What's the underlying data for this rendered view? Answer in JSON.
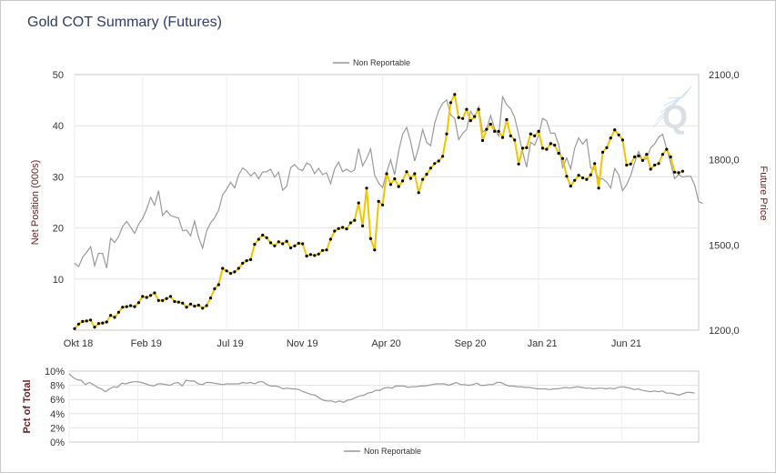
{
  "title": "Gold COT Summary (Futures)",
  "chart_data": [
    {
      "type": "line",
      "legend": {
        "label": "Non Reportable",
        "placement": "top-center"
      },
      "ylabel": "Net Position (000s)",
      "y2label": "Future Price",
      "ylim": [
        0,
        50
      ],
      "y2lim": [
        1200,
        2100
      ],
      "yticks": [
        "10",
        "20",
        "30",
        "40",
        "50"
      ],
      "y2ticks": [
        "1200,0",
        "1500,0",
        "1800,0",
        "2100,0"
      ],
      "y2tick_values": [
        1200,
        1500,
        1800,
        2100
      ],
      "xticks": [
        {
          "label": "Okt 18",
          "x": 0
        },
        {
          "label": "Feb 19",
          "x": 17
        },
        {
          "label": "Jul 19",
          "x": 38
        },
        {
          "label": "Nov 19",
          "x": 56
        },
        {
          "label": "Apr 20",
          "x": 77
        },
        {
          "label": "Sep 20",
          "x": 98
        },
        {
          "label": "Jan 21",
          "x": 116
        },
        {
          "label": "Jun 21",
          "x": 137
        }
      ],
      "x_range": [
        0,
        156
      ],
      "grid": true,
      "series": [
        {
          "name": "Non Reportable",
          "axis": "left",
          "color": "#f2c500",
          "marker_color": "#000000",
          "values": [
            0.3,
            1.2,
            1.7,
            1.8,
            2,
            0.6,
            1.3,
            1.4,
            1.6,
            2.9,
            2.5,
            3.5,
            4.5,
            4.6,
            4.8,
            4.6,
            5.4,
            6.6,
            6.4,
            6.8,
            7.3,
            5.8,
            5.8,
            6.2,
            6.6,
            5.6,
            5.5,
            5.3,
            4.5,
            5.1,
            4.7,
            4.9,
            4.3,
            4.8,
            6.3,
            8.1,
            8.9,
            12.1,
            11.6,
            11.1,
            11.4,
            12.1,
            13.1,
            13.6,
            13.8,
            16.8,
            17.8,
            18.6,
            18.1,
            17.1,
            16.5,
            17.3,
            16.9,
            17.4,
            16.1,
            16.5,
            17,
            16.9,
            14.5,
            14.8,
            14.6,
            14.9,
            15.6,
            15.7,
            17.8,
            19.4,
            19.9,
            20.1,
            19.8,
            21,
            21.5,
            24.9,
            20.4,
            27.8,
            17.9,
            15.7,
            25.2,
            24.5,
            30.6,
            28.5,
            29.6,
            28.1,
            29.2,
            31,
            29.7,
            30.6,
            26.9,
            29.5,
            30.5,
            31.7,
            32.6,
            33.1,
            34,
            38.4,
            44.5,
            46.1,
            41.6,
            41.4,
            43.2,
            41,
            41.8,
            43.2,
            37.1,
            39.3,
            40.3,
            38.9,
            38.9,
            37.7,
            41.2,
            38,
            37.2,
            32.5,
            35.6,
            35.7,
            38.4,
            38,
            38.9,
            35.6,
            35.4,
            36.5,
            36.2,
            34.6,
            33.6,
            30.1,
            28.2,
            29.3,
            30.3,
            29.8,
            29.5,
            30.4,
            32.6,
            27.8,
            34.8,
            35.7,
            37.6,
            39.2,
            38.2,
            37.2,
            32.3,
            32.5,
            33.9,
            34.1,
            33.2,
            34.4,
            31.5,
            32.3,
            32.6,
            34.4,
            35.4,
            33.9,
            30.9,
            30.8,
            31.1
          ]
        },
        {
          "name": "Future Price",
          "axis": "right",
          "color": "#9a9a9a",
          "values": [
            1436,
            1424,
            1457,
            1474,
            1494,
            1427,
            1471,
            1470,
            1418,
            1524,
            1509,
            1530,
            1565,
            1583,
            1563,
            1541,
            1573,
            1594,
            1626,
            1668,
            1640,
            1691,
            1604,
            1621,
            1604,
            1599,
            1595,
            1550,
            1553,
            1532,
            1584,
            1527,
            1489,
            1549,
            1578,
            1595,
            1622,
            1676,
            1696,
            1721,
            1701,
            1746,
            1771,
            1761,
            1743,
            1756,
            1733,
            1757,
            1758,
            1767,
            1739,
            1756,
            1693,
            1706,
            1772,
            1783,
            1767,
            1762,
            1789,
            1781,
            1751,
            1770,
            1748,
            1754,
            1716,
            1768,
            1792,
            1758,
            1767,
            1757,
            1764,
            1840,
            1779,
            1804,
            1838,
            1746,
            1718,
            1702,
            1755,
            1800,
            1747,
            1830,
            1890,
            1914,
            1864,
            1796,
            1843,
            1907,
            1861,
            1850,
            1928,
            1973,
            1999,
            2011,
            1958,
            1946,
            1871,
            1893,
            1906,
            1971,
            1948,
            1986,
            1897,
            1908,
            1956,
            1909,
            1884,
            2022,
            1994,
            1980,
            1949,
            1890,
            1828,
            1774,
            1862,
            1851,
            1887,
            1946,
            1937,
            1893,
            1894,
            1854,
            1773,
            1807,
            1768,
            1841,
            1877,
            1855,
            1873,
            1771,
            1767,
            1733,
            1733,
            1721,
            1701,
            1769,
            1747,
            1691,
            1712,
            1744,
            1790,
            1829,
            1799,
            1804,
            1842,
            1856,
            1880,
            1890,
            1839,
            1789,
            1734,
            1748,
            1739,
            1742,
            1742,
            1711,
            1653,
            1646
          ]
        }
      ]
    },
    {
      "type": "line",
      "legend": {
        "label": "Non Reportable",
        "placement": "bottom-center"
      },
      "ylabel": "Pct of Total",
      "ylim": [
        0,
        10
      ],
      "yticks": [
        "0%",
        "2%",
        "4%",
        "6%",
        "8%",
        "10%"
      ],
      "x_range": [
        0,
        156
      ],
      "grid": true,
      "series": [
        {
          "name": "Non Reportable",
          "color": "#9a9a9a",
          "values": [
            9.6,
            9.1,
            8.8,
            8.7,
            8.1,
            8.4,
            8.1,
            7.7,
            7.5,
            7.1,
            7.5,
            7.8,
            7.7,
            8.3,
            8.2,
            8.4,
            8.5,
            8.5,
            8.4,
            8.2,
            8,
            7.9,
            8.2,
            8.2,
            8.1,
            8,
            8.3,
            8.4,
            7.9,
            8.7,
            8.6,
            8.6,
            8.2,
            8.1,
            8.4,
            8.4,
            8.3,
            8.2,
            8.1,
            8.2,
            8.2,
            8.2,
            8.2,
            8.4,
            8.3,
            8.4,
            8.2,
            8.5,
            8.5,
            8.1,
            7.9,
            7.9,
            7.8,
            7.5,
            7.6,
            7.5,
            7.5,
            7.4,
            7.1,
            6.9,
            6.7,
            6.6,
            6.2,
            5.9,
            5.8,
            5.8,
            5.6,
            5.8,
            5.6,
            5.9,
            6,
            6.3,
            6.5,
            6.6,
            6.9,
            7,
            7.3,
            7.3,
            7.6,
            7.7,
            7.6,
            7.9,
            7.9,
            7.9,
            7.7,
            7.8,
            7.8,
            7.9,
            7.9,
            8,
            8.1,
            8.2,
            8.2,
            8.2,
            8,
            8.2,
            8.4,
            8.1,
            8.1,
            8,
            8.1,
            8.3,
            8,
            8,
            8.1,
            8.1,
            8.4,
            8.4,
            8.1,
            7.9,
            7.9,
            7.8,
            7.8,
            7.7,
            7.7,
            7.6,
            7.5,
            7.5,
            7.5,
            7.4,
            7.5,
            7.5,
            7.6,
            7.7,
            7.6,
            7.7,
            7.8,
            7.7,
            7.6,
            7.6,
            7.5,
            7.6,
            7.6,
            7.5,
            7.6,
            7.5,
            7.7,
            7.8,
            7.7,
            7.6,
            7.4,
            7.5,
            7.3,
            7.2,
            7.1,
            7.2,
            7.1,
            7.2,
            6.9,
            6.9,
            6.8,
            6.6,
            6.8,
            7,
            7,
            6.9
          ]
        }
      ]
    }
  ]
}
